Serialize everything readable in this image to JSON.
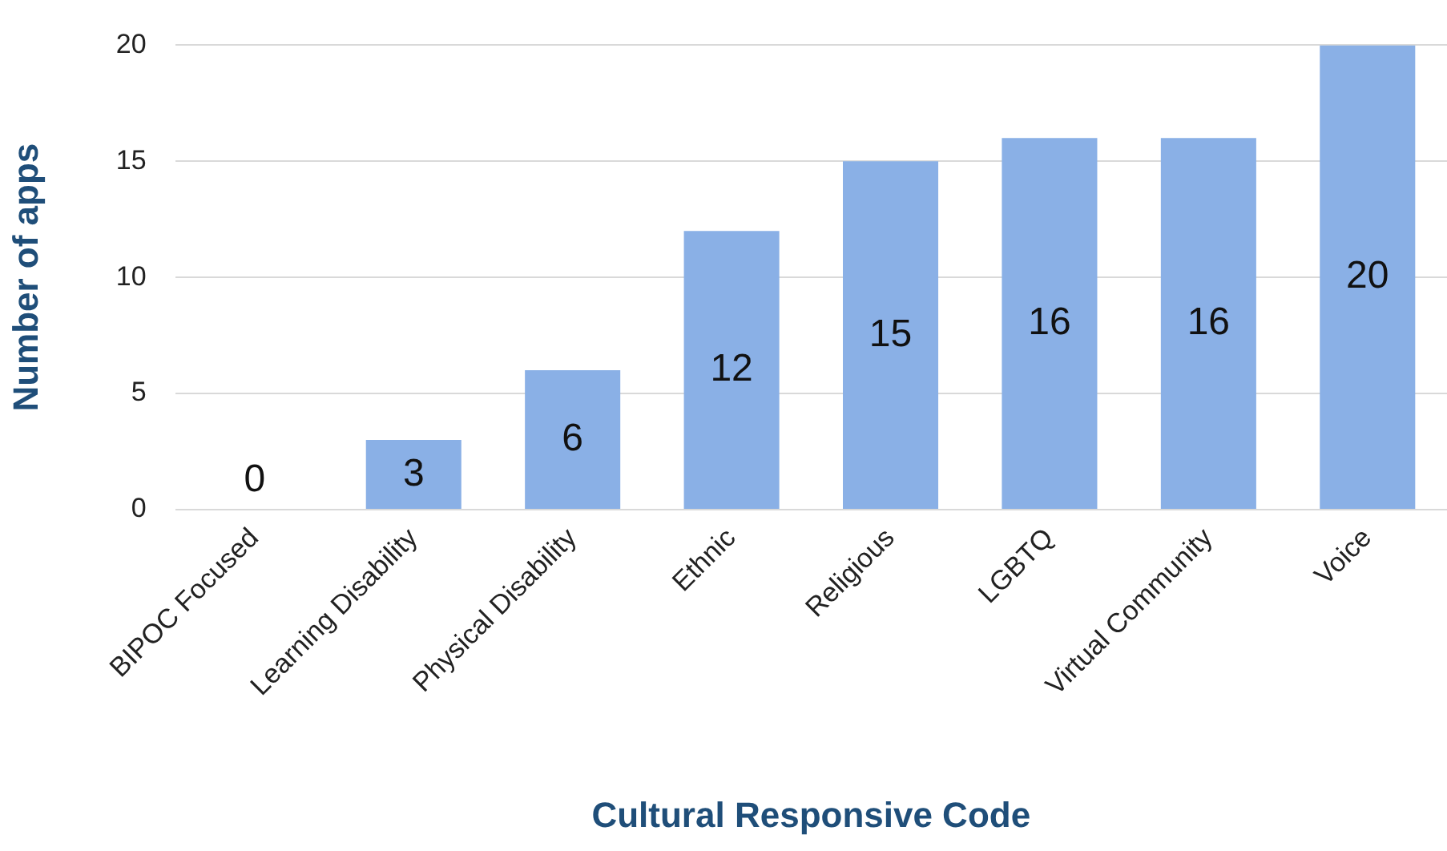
{
  "chart_data": {
    "type": "bar",
    "xlabel": "Cultural Responsive Code",
    "ylabel": "Number of apps",
    "categories": [
      "BIPOC Focused",
      "Learning Disability",
      "Physical Disability",
      "Ethnic",
      "Religious",
      "LGBTQ",
      "Virtual Community",
      "Voice"
    ],
    "values": [
      0,
      3,
      6,
      12,
      15,
      16,
      16,
      20
    ],
    "color": "#8ab0e6",
    "ylim": [
      0,
      20
    ],
    "yticks": [
      0,
      5,
      10,
      15,
      20
    ],
    "grid": "y",
    "data_labels": true
  }
}
